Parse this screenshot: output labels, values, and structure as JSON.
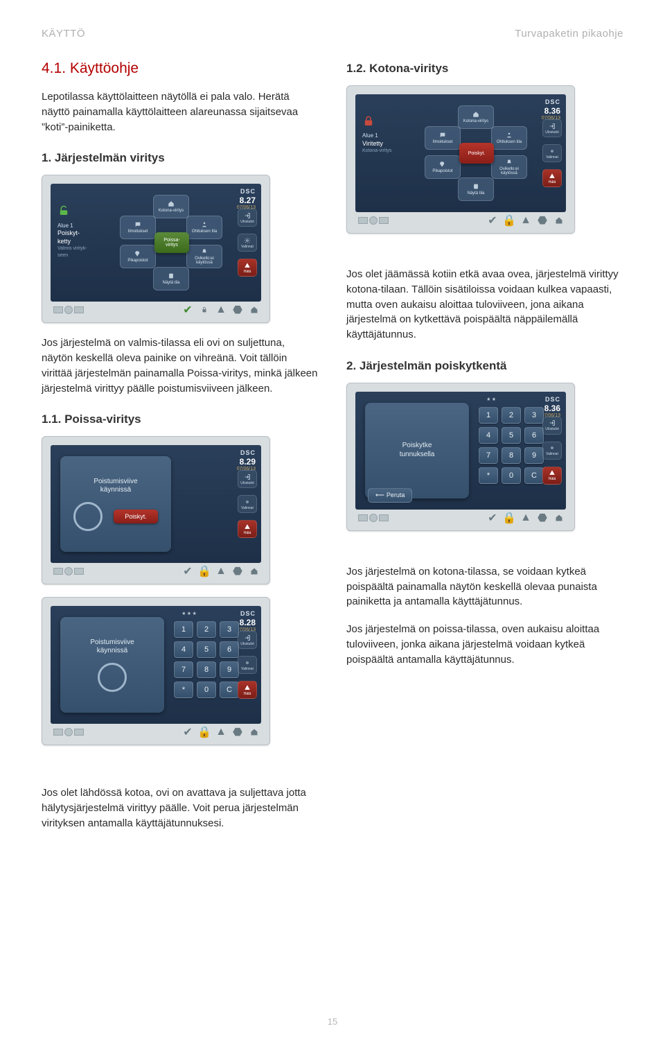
{
  "header": {
    "left": "KÄYTTÖ",
    "right": "Turvapaketin pikaohje"
  },
  "left_col": {
    "title": "4.1. Käyttöohje",
    "intro": "Lepotilassa käyttölaitteen näytöllä ei pala valo. Herätä näyttö painamalla käyttölaitteen alareunassa sijaitsevaa ”koti”-painiketta.",
    "h_jarj": "1. Järjestelmän viritys",
    "p_jarj": "Jos järjestelmä on valmis-tilassa eli ovi on suljettuna, näytön keskellä oleva painike on vihreänä. Voit tällöin virittää järjestelmän painamalla Poissa-viritys, minkä jälkeen järjestelmä virittyy päälle poistumisviiveen jälkeen.",
    "h_poissa": "1.1. Poissa-viritys",
    "p_leave": "Jos olet lähdössä kotoa, ovi on avattava ja suljettava jotta hälytysjärjestelmä virittyy päälle. Voit perua järjestelmän virityksen antamalla käyttäjätunnuksesi."
  },
  "right_col": {
    "h_kotona": "1.2. Kotona-viritys",
    "p_kotona": "Jos olet jäämässä kotiin etkä avaa ovea, järjestelmä virittyy kotona-tilaan. Tällöin sisätiloissa voidaan kulkea vapaasti, mutta oven aukaisu aloittaa tuloviiveen, jona aikana järjestelmä on kytkettävä poispäältä näppäilemällä käyttäjätunnus.",
    "h_poisk": "2. Järjestelmän poiskytkentä",
    "p_poisk1": "Jos järjestelmä on kotona-tilassa, se voidaan kytkeä poispäältä painamalla näytön keskellä olevaa punaista painiketta ja antamalla käyttäjätunnus.",
    "p_poisk2": "Jos järjestelmä on poissa-tilassa, oven aukaisu aloittaa tuloviiveen, jonka aikana järjestelmä voidaan kytkeä poispäältä antamalla käyttäjätunnus."
  },
  "device_common": {
    "brand": "DSC",
    "date": "07/06/13",
    "alue": "Alue 1",
    "side": {
      "ulostulot": "Ulostulot",
      "valinnat": "Valinnat",
      "hata": "Hätä"
    },
    "segs": {
      "kotona": "Kotona-viritys",
      "ilmoitukset": "Ilmoitukset",
      "ohituksentila": "Ohituksen tila",
      "pikapoistot": "Pikapoistot",
      "ovikelloeikaytossa": "Ovikello:ei käytössä",
      "nayta_tila": "Näytä tila"
    }
  },
  "device1": {
    "time": "8.27",
    "status_big": "Poiskyt-",
    "status_big2": "ketty",
    "status_sub": "Valmis virityk-",
    "status_sub2": "seen",
    "center": "Poissa-\nviritys"
  },
  "device_kotona": {
    "time": "8.36",
    "status_big": "Viritetty",
    "status_sub": "Kotona-viritys",
    "center": "Poiskyt."
  },
  "device_exit": {
    "time": "8.29",
    "panel_title": "Poistumisviive\nkäynnissä",
    "chip": "Poiskyt."
  },
  "device_keypad1": {
    "time": "8.28",
    "panel_title": "Poistumisviive\nkäynnissä",
    "stars": "***",
    "keys": [
      "1",
      "2",
      "3",
      "4",
      "5",
      "6",
      "7",
      "8",
      "9",
      "*",
      "0",
      "C"
    ]
  },
  "device_poisk_keypad": {
    "time": "8.36",
    "panel_title": "Poiskytke\ntunnuksella",
    "stars": "**",
    "keys": [
      "1",
      "2",
      "3",
      "4",
      "5",
      "6",
      "7",
      "8",
      "9",
      "*",
      "0",
      "C"
    ],
    "peruta": "Peruta"
  },
  "page_number": "15"
}
